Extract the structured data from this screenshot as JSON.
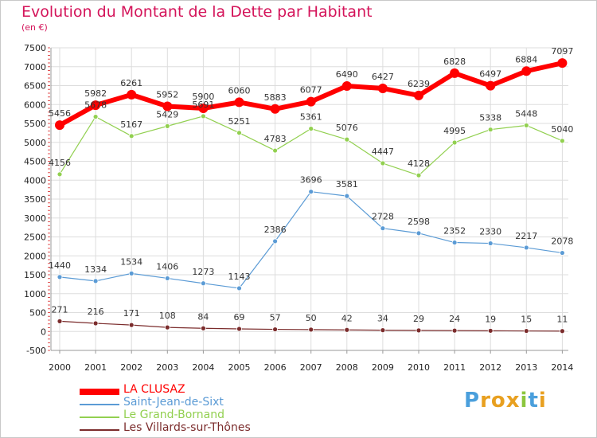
{
  "chart": {
    "title": "Evolution du Montant de la Dette par Habitant",
    "unit_label": "(en €)"
  },
  "brand": {
    "letters": [
      "P",
      "r",
      "o",
      "x",
      "i",
      "t",
      "i"
    ],
    "colors": [
      "#4a9fdc",
      "#e8a020",
      "#e8a020",
      "#e8a020",
      "#8cc63f",
      "#4a9fdc",
      "#e8a020"
    ]
  },
  "chart_data": {
    "type": "line",
    "title": "Evolution du Montant de la Dette par Habitant",
    "ylabel": "(en €)",
    "xlabel": "",
    "x": [
      "2000",
      "2001",
      "2002",
      "2003",
      "2004",
      "2005",
      "2006",
      "2007",
      "2008",
      "2009",
      "2010",
      "2011",
      "2012",
      "2013",
      "2014"
    ],
    "ylim": [
      -500,
      7500
    ],
    "yticks": [
      -500,
      0,
      500,
      1000,
      1500,
      2000,
      2500,
      3000,
      3500,
      4000,
      4500,
      5000,
      5500,
      6000,
      6500,
      7000,
      7500
    ],
    "grid": true,
    "legend_position": "bottom-left",
    "series": [
      {
        "name": "LA CLUSAZ",
        "color": "#ff0000",
        "values": [
          5456,
          5982,
          6261,
          5952,
          5900,
          6060,
          5883,
          6077,
          6490,
          6427,
          6239,
          6828,
          6497,
          6884,
          7097
        ]
      },
      {
        "name": "Saint-Jean-de-Sixt",
        "color": "#5b9bd5",
        "values": [
          1440,
          1334,
          1534,
          1406,
          1273,
          1143,
          2386,
          3696,
          3581,
          2728,
          2598,
          2352,
          2330,
          2217,
          2078
        ]
      },
      {
        "name": "Le Grand-Bornand",
        "color": "#92d050",
        "values": [
          4156,
          5678,
          5167,
          5429,
          5691,
          5251,
          4783,
          5361,
          5076,
          4447,
          4128,
          4995,
          5338,
          5448,
          5040
        ]
      },
      {
        "name": "Les Villards-sur-Thônes",
        "color": "#7b2c2c",
        "values": [
          271,
          216,
          171,
          108,
          84,
          69,
          57,
          50,
          42,
          34,
          29,
          24,
          19,
          15,
          11
        ]
      }
    ]
  }
}
